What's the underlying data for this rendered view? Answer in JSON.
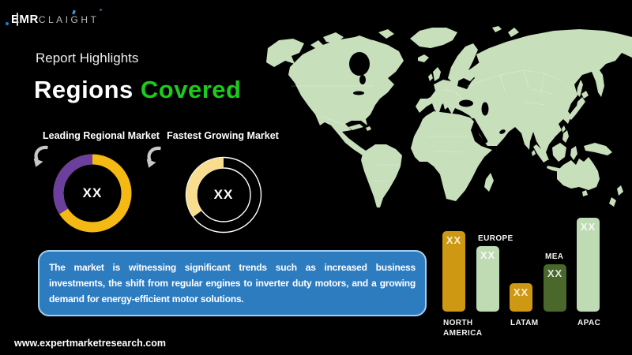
{
  "logo": {
    "brand": "EMR",
    "suffix": "CLAIGHT"
  },
  "header": {
    "eyebrow": "Report Highlights",
    "title_primary": "Regions ",
    "title_accent": "Covered"
  },
  "colors": {
    "accent_green": "#1dcb1a",
    "map_green": "#c8dfbc",
    "callout_bg": "#2e7cc0",
    "callout_border": "#a3cfee",
    "arrow_gray": "#c8c8c8"
  },
  "callout": {
    "text": "The market is witnessing significant trends such as increased business investments, the shift from regular engines to inverter duty motors, and a growing demand for energy-efficient motor solutions."
  },
  "footer": {
    "url": "www.expertmarketresearch.com"
  },
  "chart_data": [
    {
      "type": "pie",
      "subtype": "donut",
      "title": "Leading Regional Market",
      "center_label": "XX",
      "note": "values masked as XX in source image",
      "slices": [
        {
          "name": "leading-region-share",
          "fraction": 0.34,
          "color": "#6c3f9e"
        },
        {
          "name": "remainder",
          "fraction": 0.66,
          "color": "#f5b914"
        }
      ]
    },
    {
      "type": "pie",
      "subtype": "donut-outline",
      "title": "Fastest Growing Market",
      "center_label": "XX",
      "note": "values masked as XX in source image; remainder drawn as thin white outline ring",
      "slices": [
        {
          "name": "fastest-growing-share",
          "fraction": 0.35,
          "color": "#f8dd8e"
        },
        {
          "name": "remainder",
          "fraction": 0.65,
          "color": "outline"
        }
      ]
    },
    {
      "type": "bar",
      "title": "",
      "xlabel": "",
      "ylabel": "",
      "grid": false,
      "legend": false,
      "ylim": [
        0,
        100
      ],
      "categories": [
        "NORTH AMERICA",
        "EUROPE",
        "LATAM",
        "MEA",
        "APAC"
      ],
      "values": [
        86,
        70,
        30,
        50,
        100
      ],
      "value_note": "relative bar heights (APAC=100); printed values masked as XX",
      "bar_labels": [
        "XX",
        "XX",
        "XX",
        "XX",
        "XX"
      ],
      "bar_colors": [
        "#ce9812",
        "#bfdbb3",
        "#ce9812",
        "#4a682b",
        "#bfdbb3"
      ],
      "category_label_position": [
        "below",
        "above",
        "below",
        "above",
        "below"
      ]
    }
  ]
}
